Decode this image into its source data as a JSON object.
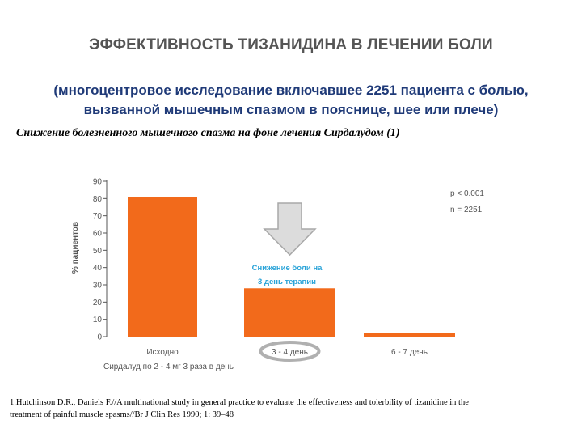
{
  "header": {
    "title": "ЭФФЕКТИВНОСТЬ ТИЗАНИДИНА В ЛЕЧЕНИИ БОЛИ",
    "subtitle_line1": "(многоцентровое исследование включавшее 2251 пациента с болью,",
    "subtitle_line2": "вызванной мышечным спазмом в пояснице, шее или плече)",
    "chart_caption": "Снижение болезненного мышечного спазма на фоне лечения Сирдалудом (1)"
  },
  "reference": {
    "line1": "1.Hutchinson D.R., Daniels F.//A multinational study in general practice to evaluate the effectiveness and tolerbility of tizanidine in the",
    "line2": "treatment of painful muscle spasms//Br J Clin Res 1990; 1: 39–48"
  },
  "colors": {
    "bar": "#f26a1b",
    "title": "#555555",
    "subtitle": "#1f3a78",
    "arrow_label": "#29a3d8",
    "axis": "#555555"
  },
  "chart_data": {
    "type": "bar",
    "categories": [
      "Исходно",
      "3 - 4 день",
      "6 - 7 день"
    ],
    "values": [
      81,
      28,
      2
    ],
    "ylabel": "% пациентов",
    "xlabel": "Сирдалуд по 2 - 4 мг 3 раза в день",
    "ylim": [
      0,
      90
    ],
    "yticks": [
      0,
      10,
      20,
      30,
      40,
      50,
      60,
      70,
      80,
      90
    ],
    "grid": false,
    "highlighted_category": "3 - 4 день",
    "stats": [
      "p < 0.001",
      "n = 2251"
    ],
    "annotation": {
      "line1": "Снижение боли на",
      "line2": "3 день терапии",
      "icon": "down-arrow-icon"
    }
  }
}
